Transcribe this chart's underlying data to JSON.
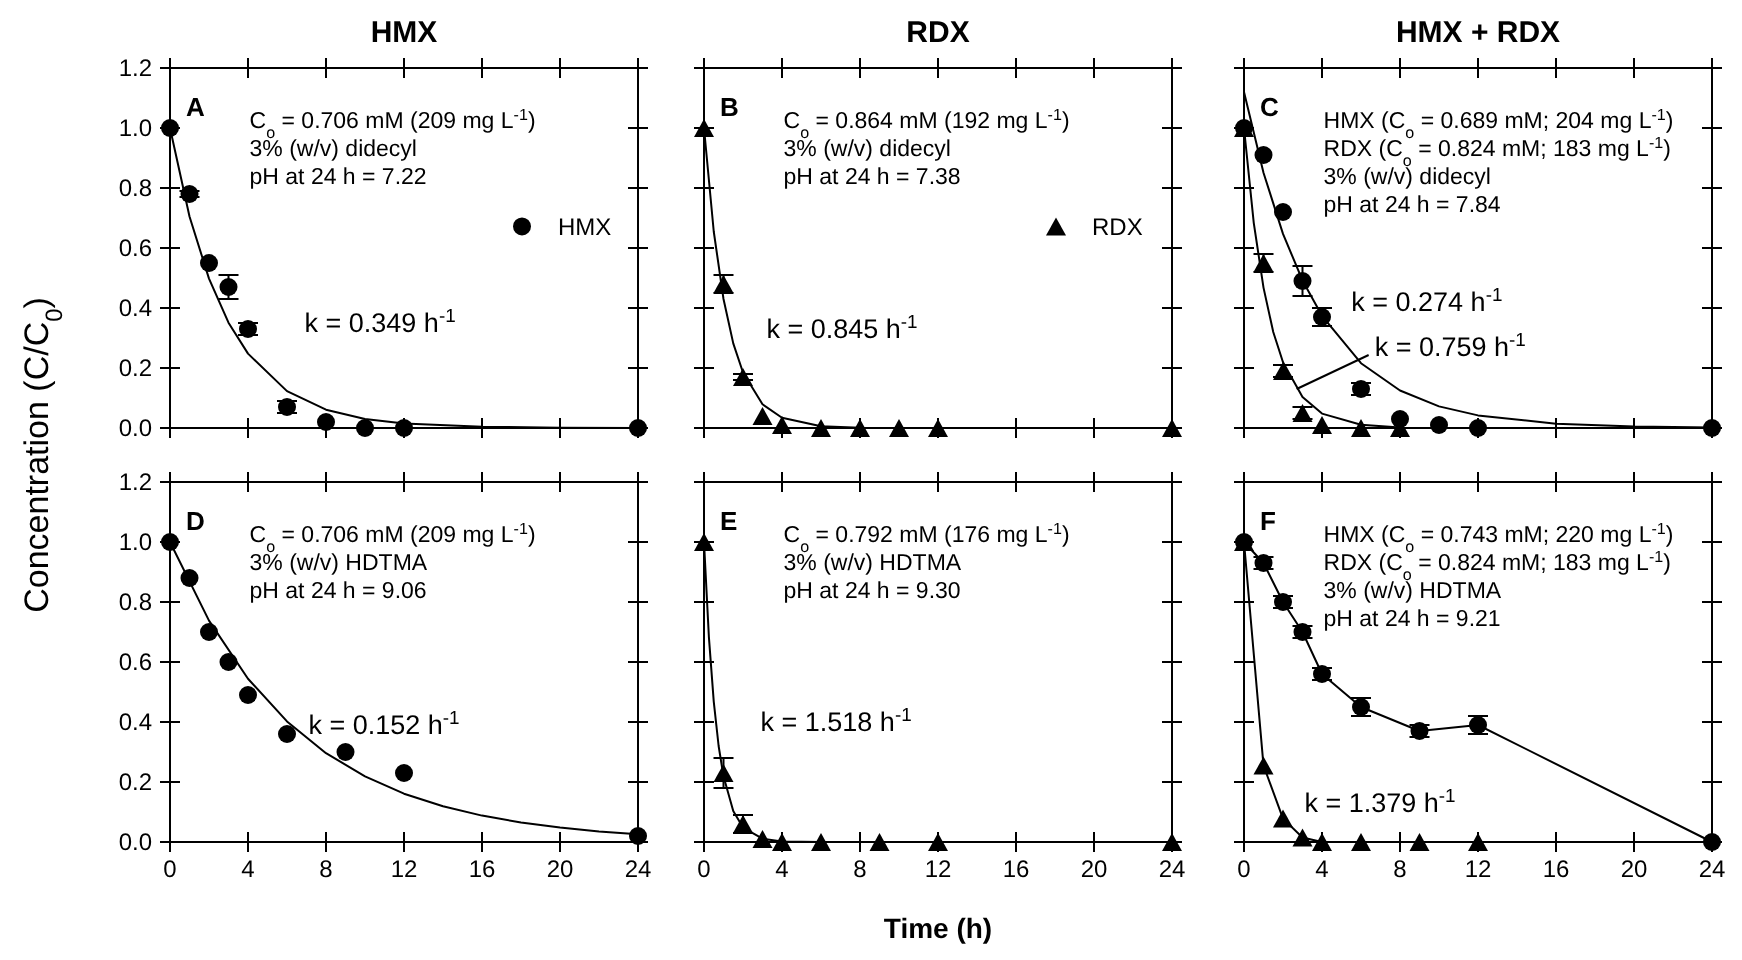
{
  "chart_data": [
    {
      "type": "scatter",
      "title": "HMX",
      "ylabel": "Concentration (C/C$_{0}$)",
      "xlim": [
        0,
        24
      ],
      "ylim": [
        0,
        1.2
      ],
      "xticks": [
        0,
        4,
        8,
        12,
        16,
        20,
        24
      ],
      "yticks": [
        {
          "value": 0,
          "label": "0.0"
        },
        {
          "value": 0.2,
          "label": "0.2"
        },
        {
          "value": 0.4,
          "label": "0.4"
        },
        {
          "value": 0.6,
          "label": "0.6"
        },
        {
          "value": 0.8,
          "label": "0.8"
        },
        {
          "value": 1,
          "label": "1.0"
        },
        {
          "value": 1.2,
          "label": "1.2"
        }
      ],
      "tick_labels": "y",
      "legend": "right",
      "annotations": [
        "A",
        "C$_{o}$ = 0.706 mM (209 mg L$^{-1}$)",
        "3% (w/v) didecyl",
        "pH at 24 h = 7.22",
        "k = 0.349 h$^{-1}$"
      ],
      "series": [
        {
          "name": "HMX",
          "marker": "circle",
          "color": "#000000",
          "x": [
            0,
            1,
            2,
            3,
            4,
            6,
            8,
            10,
            12,
            24
          ],
          "values": [
            1.0,
            0.78,
            0.55,
            0.47,
            0.33,
            0.07,
            0.02,
            0.0,
            0.0,
            0.0
          ],
          "errors": [
            null,
            0.01,
            null,
            0.04,
            0.02,
            0.02,
            null,
            null,
            null,
            null
          ]
        },
        {
          "type": "line",
          "marker": "none",
          "color": "#000000",
          "x": [
            0,
            1,
            2,
            3,
            4,
            6,
            8,
            10,
            12,
            16,
            20,
            24
          ],
          "values": [
            1.0,
            0.705,
            0.498,
            0.351,
            0.248,
            0.123,
            0.061,
            0.03,
            0.015,
            0.004,
            0.001,
            0.0
          ]
        }
      ]
    },
    {
      "type": "scatter",
      "title": "RDX",
      "xlim": [
        0,
        24
      ],
      "ylim": [
        0,
        1.2
      ],
      "xticks": [
        0,
        4,
        8,
        12,
        16,
        20,
        24
      ],
      "yticks": [
        0,
        0.2,
        0.4,
        0.6,
        0.8,
        1,
        1.2
      ],
      "tick_labels": false,
      "legend": "right",
      "annotations": [
        "B",
        "C$_{o}$ = 0.864 mM (192 mg L$^{-1}$)",
        "3% (w/v) didecyl",
        "pH at 24 h = 7.38",
        "k = 0.845 h$^{-1}$"
      ],
      "series": [
        {
          "name": "RDX",
          "marker": "triangle",
          "color": "#000000",
          "x": [
            0,
            1,
            2,
            3,
            4,
            6,
            8,
            10,
            12,
            24
          ],
          "values": [
            1.0,
            0.48,
            0.17,
            0.04,
            0.01,
            0.0,
            0.0,
            0.0,
            0.0,
            0.0
          ],
          "errors": [
            null,
            0.03,
            0.01,
            null,
            null,
            null,
            null,
            null,
            null,
            null
          ]
        },
        {
          "type": "line",
          "marker": "none",
          "color": "#000000",
          "x": [
            0,
            0.5,
            1,
            1.5,
            2,
            3,
            4,
            6,
            8,
            12,
            24
          ],
          "values": [
            1.0,
            0.655,
            0.43,
            0.282,
            0.185,
            0.079,
            0.034,
            0.006,
            0.001,
            0.0,
            0.0
          ]
        }
      ]
    },
    {
      "type": "scatter",
      "title": "HMX + RDX",
      "xlim": [
        0,
        24
      ],
      "ylim": [
        0,
        1.2
      ],
      "xticks": [
        0,
        4,
        8,
        12,
        16,
        20,
        24
      ],
      "yticks": [
        0,
        0.2,
        0.4,
        0.6,
        0.8,
        1,
        1.2
      ],
      "tick_labels": false,
      "annotations": [
        "C",
        "HMX (C$_{o}$ = 0.689 mM; 204 mg L$^{-1}$)",
        "RDX (C$_{o}$ = 0.824 mM; 183 mg L$^{-1}$)",
        "3% (w/v) didecyl",
        "pH at 24 h = 7.84",
        "k = 0.274 h$^{-1}$",
        "k = 0.759 h$^{-1}$"
      ],
      "series": [
        {
          "marker": "circle",
          "color": "#000000",
          "x": [
            0,
            1,
            2,
            3,
            4,
            6,
            8,
            10,
            12,
            24
          ],
          "values": [
            1.0,
            0.91,
            0.72,
            0.49,
            0.37,
            0.13,
            0.03,
            0.01,
            0.0,
            0.0
          ],
          "errors": [
            null,
            null,
            null,
            0.05,
            0.03,
            0.02,
            null,
            null,
            null,
            null
          ]
        },
        {
          "marker": "triangle",
          "color": "#000000",
          "x": [
            0,
            1,
            2,
            3,
            4,
            6,
            8
          ],
          "values": [
            1.0,
            0.55,
            0.19,
            0.05,
            0.01,
            0.0,
            0.0
          ],
          "errors": [
            null,
            0.03,
            0.02,
            0.02,
            null,
            null,
            null
          ]
        },
        {
          "type": "line",
          "marker": "none",
          "color": "#000000",
          "x": [
            0,
            1,
            2,
            3,
            4,
            6,
            8,
            10,
            12,
            16,
            20,
            24
          ],
          "values": [
            1.12,
            0.851,
            0.647,
            0.492,
            0.374,
            0.216,
            0.125,
            0.072,
            0.042,
            0.014,
            0.005,
            0.002
          ]
        },
        {
          "type": "line",
          "marker": "none",
          "color": "#000000",
          "x": [
            0,
            0.5,
            1,
            1.5,
            2,
            3,
            4,
            6,
            8
          ],
          "values": [
            1.0,
            0.684,
            0.468,
            0.32,
            0.219,
            0.103,
            0.048,
            0.011,
            0.002
          ]
        }
      ]
    },
    {
      "type": "scatter",
      "xlim": [
        0,
        24
      ],
      "ylim": [
        0,
        1.2
      ],
      "xticks": [
        0,
        4,
        8,
        12,
        16,
        20,
        24
      ],
      "yticks": [
        {
          "value": 0,
          "label": "0.0"
        },
        {
          "value": 0.2,
          "label": "0.2"
        },
        {
          "value": 0.4,
          "label": "0.4"
        },
        {
          "value": 0.6,
          "label": "0.6"
        },
        {
          "value": 0.8,
          "label": "0.8"
        },
        {
          "value": 1,
          "label": "1.0"
        },
        {
          "value": 1.2,
          "label": "1.2"
        }
      ],
      "annotations": [
        "D",
        "C$_{o}$ = 0.706 mM (209 mg L$^{-1}$)",
        "3% (w/v) HDTMA",
        "pH at 24 h = 9.06",
        "k = 0.152 h$^{-1}$"
      ],
      "series": [
        {
          "marker": "circle",
          "color": "#000000",
          "x": [
            0,
            1,
            2,
            3,
            4,
            6,
            9,
            12,
            24
          ],
          "values": [
            1.0,
            0.88,
            0.7,
            0.6,
            0.49,
            0.36,
            0.3,
            0.23,
            0.02
          ]
        },
        {
          "type": "line",
          "marker": "none",
          "color": "#000000",
          "x": [
            0,
            2,
            4,
            6,
            8,
            10,
            12,
            14,
            16,
            18,
            20,
            22,
            24
          ],
          "values": [
            1.0,
            0.738,
            0.544,
            0.402,
            0.296,
            0.219,
            0.161,
            0.119,
            0.088,
            0.065,
            0.048,
            0.035,
            0.026
          ]
        }
      ]
    },
    {
      "type": "scatter",
      "xlabel": "Time (h)",
      "xlim": [
        0,
        24
      ],
      "ylim": [
        0,
        1.2
      ],
      "xticks": [
        0,
        4,
        8,
        12,
        16,
        20,
        24
      ],
      "yticks": [
        0,
        0.2,
        0.4,
        0.6,
        0.8,
        1,
        1.2
      ],
      "tick_labels": "x",
      "annotations": [
        "E",
        "C$_{o}$ = 0.792 mM (176 mg L$^{-1}$)",
        "3% (w/v) HDTMA",
        "pH at 24 h = 9.30",
        "k = 1.518 h$^{-1}$"
      ],
      "series": [
        {
          "marker": "triangle",
          "color": "#000000",
          "x": [
            0,
            1,
            2,
            3,
            4,
            6,
            9,
            12,
            24
          ],
          "values": [
            1.0,
            0.23,
            0.06,
            0.01,
            0.0,
            0.0,
            0.0,
            0.0,
            0.0
          ],
          "errors": [
            null,
            0.05,
            0.03,
            null,
            null,
            null,
            null,
            null,
            null
          ]
        },
        {
          "type": "line",
          "marker": "none",
          "color": "#000000",
          "x": [
            0,
            0.25,
            0.5,
            0.75,
            1,
            1.5,
            2,
            3,
            4,
            6,
            24
          ],
          "values": [
            1.0,
            0.684,
            0.468,
            0.32,
            0.219,
            0.103,
            0.048,
            0.011,
            0.002,
            0.0,
            0.0
          ]
        }
      ]
    },
    {
      "type": "line",
      "xlim": [
        0,
        24
      ],
      "ylim": [
        0,
        1.2
      ],
      "xticks": [
        0,
        4,
        8,
        12,
        16,
        20,
        24
      ],
      "yticks": [
        0,
        0.2,
        0.4,
        0.6,
        0.8,
        1,
        1.2
      ],
      "tick_labels": "x",
      "annotations": [
        "F",
        "HMX (C$_{o}$ = 0.743 mM; 220 mg L$^{-1}$)",
        "RDX (C$_{o}$ = 0.824 mM; 183 mg L$^{-1}$)",
        "3% (w/v) HDTMA",
        "pH at 24 h = 9.21",
        "k = 1.379 h$^{-1}$"
      ],
      "series": [
        {
          "marker": "circle",
          "color": "#000000",
          "x": [
            0,
            1,
            2,
            3,
            4,
            6,
            9,
            12,
            24
          ],
          "values": [
            1.0,
            0.93,
            0.8,
            0.7,
            0.56,
            0.45,
            0.37,
            0.39,
            0.0
          ],
          "errors": [
            null,
            0.02,
            0.02,
            0.02,
            0.02,
            0.03,
            0.02,
            0.03,
            null
          ]
        },
        {
          "marker": "triangle",
          "color": "#000000",
          "x": [
            0,
            1,
            2,
            3,
            4,
            6,
            9,
            12
          ],
          "values": [
            1.0,
            0.255,
            0.078,
            0.015,
            0.0,
            0.0,
            0.0,
            0.0
          ]
        }
      ]
    }
  ]
}
